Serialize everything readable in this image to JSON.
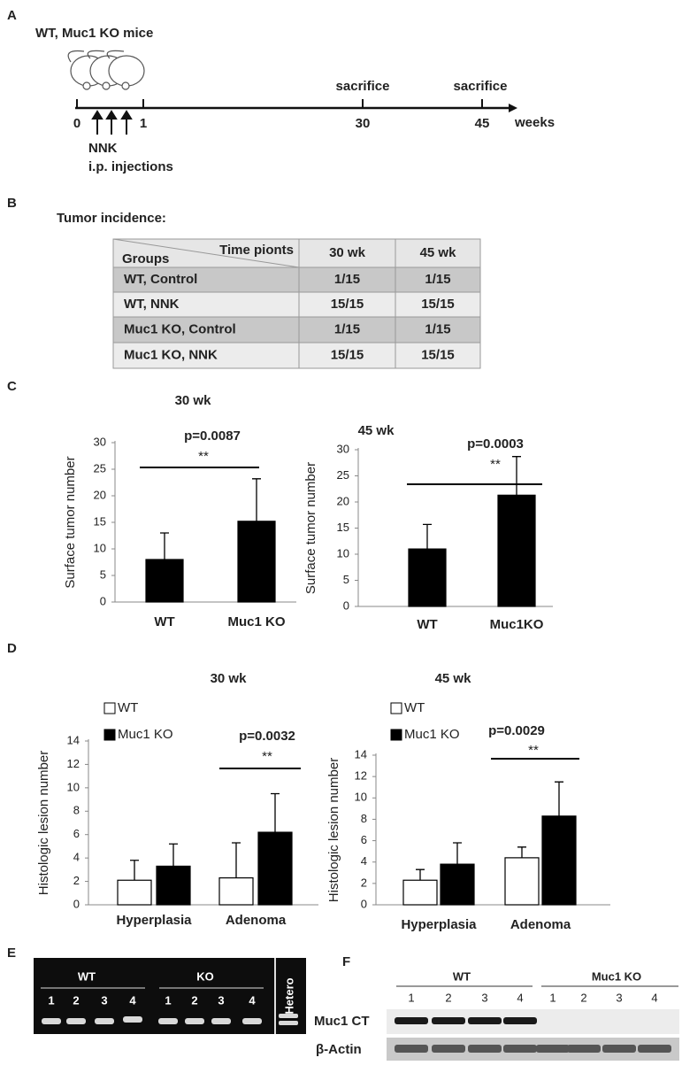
{
  "panel_a": {
    "label": "A",
    "mice": "WT, Muc1 KO mice",
    "timepoints": [
      "0",
      "1",
      "30",
      "45"
    ],
    "unit": "weeks",
    "sacrifice": [
      "sacrifice",
      "sacrifice"
    ],
    "treatment": "NNK",
    "route": "i.p. injections"
  },
  "panel_b": {
    "label": "B",
    "title": "Tumor incidence:",
    "table": {
      "corner_top": "Time pionts",
      "corner_bottom": "Groups",
      "columns": [
        "30 wk",
        "45 wk"
      ],
      "rows": [
        [
          "WT,  Control",
          "1/15",
          "1/15"
        ],
        [
          "WT, NNK",
          "15/15",
          "15/15"
        ],
        [
          "Muc1 KO, Control",
          "1/15",
          "1/15"
        ],
        [
          "Muc1 KO, NNK",
          "15/15",
          "15/15"
        ]
      ]
    }
  },
  "panel_c_label": "C",
  "panel_d_label": "D",
  "panel_e": {
    "label": "E",
    "groups": [
      "WT",
      "KO"
    ],
    "lanes": [
      "1",
      "2",
      "3",
      "4"
    ],
    "control": "Hetero"
  },
  "panel_f": {
    "label": "F",
    "groups": [
      "WT",
      "Muc1 KO"
    ],
    "lanes": [
      "1",
      "2",
      "3",
      "4"
    ],
    "rows": [
      "Muc1 CT",
      "β-Actin"
    ]
  },
  "chart_data": [
    {
      "type": "bar",
      "title": "30 wk",
      "y_label": "Surface tumor number",
      "categories": [
        "WT",
        "Muc1 KO"
      ],
      "values": [
        8,
        15.2
      ],
      "errors": [
        5,
        8
      ],
      "color": "#000000",
      "ylim": [
        0,
        30
      ],
      "yticks": [
        0,
        5,
        10,
        15,
        20,
        25,
        30
      ],
      "annotation": "p=0.0087",
      "significance": "**"
    },
    {
      "type": "bar",
      "title": "45 wk",
      "y_label": "Surface tumor number",
      "categories": [
        "WT",
        "Muc1KO"
      ],
      "values": [
        11,
        21.3
      ],
      "errors": [
        4.7,
        7.4
      ],
      "color": "#000000",
      "ylim": [
        0,
        30
      ],
      "yticks": [
        0,
        5,
        10,
        15,
        20,
        25,
        30
      ],
      "annotation": "p=0.0003",
      "significance": "**"
    },
    {
      "type": "grouped_bar",
      "title": "30 wk",
      "y_label": "Histologic lesion number",
      "categories": [
        "Hyperplasia",
        "Adenoma"
      ],
      "series": [
        {
          "name": "WT",
          "color": "#ffffff",
          "values": [
            2.1,
            2.3
          ],
          "errors": [
            1.7,
            3.0
          ]
        },
        {
          "name": "Muc1 KO",
          "color": "#000000",
          "values": [
            3.3,
            6.2
          ],
          "errors": [
            1.9,
            3.3
          ]
        }
      ],
      "ylim": [
        0,
        14
      ],
      "yticks": [
        0,
        2,
        4,
        6,
        8,
        10,
        12,
        14
      ],
      "annotation": "p=0.0032",
      "significance": "**"
    },
    {
      "type": "grouped_bar",
      "title": "45 wk",
      "y_label": "Histologic lesion number",
      "categories": [
        "Hyperplasia",
        "Adenoma"
      ],
      "series": [
        {
          "name": "WT",
          "color": "#ffffff",
          "values": [
            2.3,
            4.4
          ],
          "errors": [
            1.0,
            1.0
          ]
        },
        {
          "name": "Muc1 KO",
          "color": "#000000",
          "values": [
            3.8,
            8.3
          ],
          "errors": [
            2.0,
            3.2
          ]
        }
      ],
      "ylim": [
        0,
        14
      ],
      "yticks": [
        0,
        2,
        4,
        6,
        8,
        10,
        12,
        14
      ],
      "annotation": "p=0.0029",
      "significance": "**"
    }
  ]
}
